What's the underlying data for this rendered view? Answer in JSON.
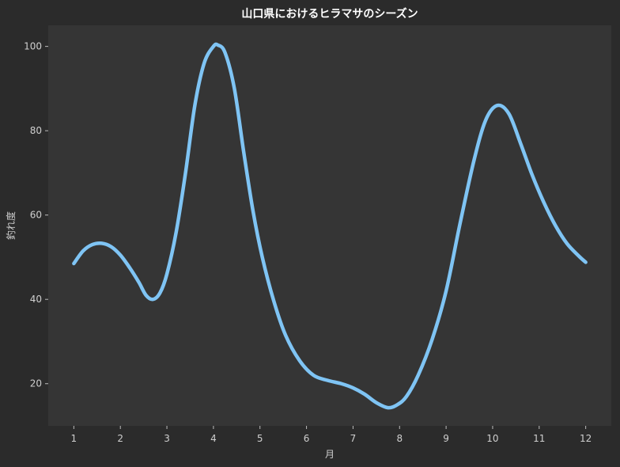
{
  "chart_data": {
    "type": "line",
    "title": "山口県におけるヒラマサのシーズン",
    "xlabel": "月",
    "ylabel": "釣れ度",
    "x": [
      1,
      2,
      3,
      4,
      5,
      6,
      7,
      8,
      9,
      10,
      11,
      12
    ],
    "x_tick_labels": [
      "1",
      "2",
      "3",
      "4",
      "5",
      "6",
      "7",
      "8",
      "9",
      "10",
      "11",
      "12"
    ],
    "xlim": [
      0.45,
      12.55
    ],
    "ylim": [
      10,
      105
    ],
    "y_ticks": [
      20,
      40,
      60,
      80,
      100
    ],
    "y_tick_labels": [
      "20",
      "40",
      "60",
      "80",
      "100"
    ],
    "grid": false,
    "series": [
      {
        "color": "#7fc4f4",
        "smooth_curve": [
          [
            1.0,
            48.5
          ],
          [
            1.2,
            51.5
          ],
          [
            1.4,
            53.0
          ],
          [
            1.6,
            53.3
          ],
          [
            1.8,
            52.5
          ],
          [
            2.0,
            50.5
          ],
          [
            2.2,
            47.5
          ],
          [
            2.4,
            44.0
          ],
          [
            2.55,
            41.0
          ],
          [
            2.7,
            40.0
          ],
          [
            2.85,
            41.5
          ],
          [
            3.0,
            46.0
          ],
          [
            3.2,
            56.0
          ],
          [
            3.4,
            70.0
          ],
          [
            3.6,
            86.0
          ],
          [
            3.8,
            96.0
          ],
          [
            4.0,
            100.0
          ],
          [
            4.1,
            100.3
          ],
          [
            4.25,
            98.5
          ],
          [
            4.45,
            90.0
          ],
          [
            4.65,
            75.0
          ],
          [
            4.85,
            61.0
          ],
          [
            5.05,
            50.0
          ],
          [
            5.3,
            39.5
          ],
          [
            5.55,
            31.5
          ],
          [
            5.85,
            25.5
          ],
          [
            6.15,
            22.0
          ],
          [
            6.45,
            20.8
          ],
          [
            6.75,
            20.0
          ],
          [
            7.0,
            19.0
          ],
          [
            7.25,
            17.5
          ],
          [
            7.5,
            15.5
          ],
          [
            7.75,
            14.3
          ],
          [
            7.95,
            15.0
          ],
          [
            8.15,
            17.0
          ],
          [
            8.4,
            22.0
          ],
          [
            8.7,
            30.5
          ],
          [
            9.0,
            42.0
          ],
          [
            9.3,
            58.0
          ],
          [
            9.6,
            73.0
          ],
          [
            9.85,
            82.5
          ],
          [
            10.1,
            86.0
          ],
          [
            10.35,
            84.0
          ],
          [
            10.6,
            77.0
          ],
          [
            10.85,
            69.5
          ],
          [
            11.1,
            63.0
          ],
          [
            11.35,
            57.5
          ],
          [
            11.6,
            53.2
          ],
          [
            11.85,
            50.3
          ],
          [
            12.0,
            48.8
          ]
        ]
      }
    ]
  }
}
